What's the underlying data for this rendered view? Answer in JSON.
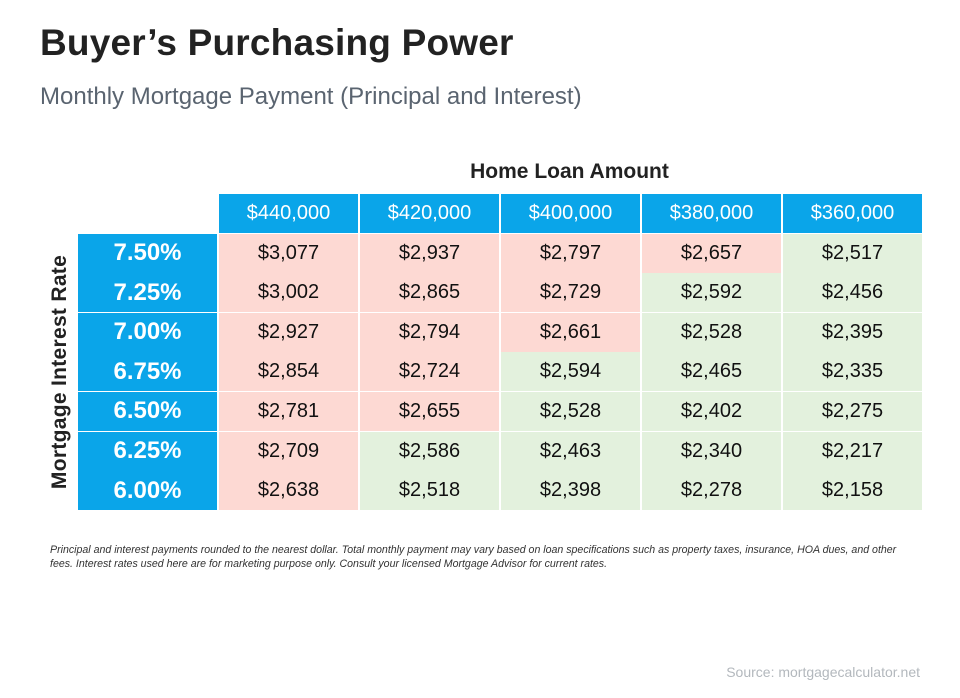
{
  "title": "Buyer’s Purchasing Power",
  "subtitle": "Monthly Mortgage Payment (Principal and Interest)",
  "col_group_label": "Home Loan Amount",
  "row_group_label": "Mortgage  Interest Rate",
  "footnote": "Principal and interest payments rounded to the nearest dollar. Total monthly payment may vary based on loan specifications such as property taxes, insurance, HOA dues, and other fees. Interest rates used here are for marketing purpose only. Consult your licensed Mortgage Advisor for current rates.",
  "source": "Source: mortgagecalculator.net",
  "colors": {
    "header": "#0aa5e9",
    "above_3000_band": "#fdd9d3",
    "below_band": "#e3f1dd"
  },
  "chart_data": {
    "type": "table",
    "columns": [
      "$440,000",
      "$420,000",
      "$400,000",
      "$380,000",
      "$360,000"
    ],
    "rows": [
      {
        "label": "7.50%",
        "values": [
          "$3,077",
          "$2,937",
          "$2,797",
          "$2,657",
          "$2,517"
        ],
        "shades": [
          "pink",
          "pink",
          "pink",
          "pink",
          "green"
        ]
      },
      {
        "label": "7.25%",
        "values": [
          "$3,002",
          "$2,865",
          "$2,729",
          "$2,592",
          "$2,456"
        ],
        "shades": [
          "pink",
          "pink",
          "pink",
          "green",
          "green"
        ]
      },
      {
        "label": "7.00%",
        "values": [
          "$2,927",
          "$2,794",
          "$2,661",
          "$2,528",
          "$2,395"
        ],
        "shades": [
          "pink",
          "pink",
          "pink",
          "green",
          "green"
        ]
      },
      {
        "label": "6.75%",
        "values": [
          "$2,854",
          "$2,724",
          "$2,594",
          "$2,465",
          "$2,335"
        ],
        "shades": [
          "pink",
          "pink",
          "green",
          "green",
          "green"
        ]
      },
      {
        "label": "6.50%",
        "values": [
          "$2,781",
          "$2,655",
          "$2,528",
          "$2,402",
          "$2,275"
        ],
        "shades": [
          "pink",
          "pink",
          "green",
          "green",
          "green"
        ]
      },
      {
        "label": "6.25%",
        "values": [
          "$2,709",
          "$2,586",
          "$2,463",
          "$2,340",
          "$2,217"
        ],
        "shades": [
          "pink",
          "green",
          "green",
          "green",
          "green"
        ]
      },
      {
        "label": "6.00%",
        "values": [
          "$2,638",
          "$2,518",
          "$2,398",
          "$2,278",
          "$2,158"
        ],
        "shades": [
          "pink",
          "green",
          "green",
          "green",
          "green"
        ]
      }
    ]
  }
}
